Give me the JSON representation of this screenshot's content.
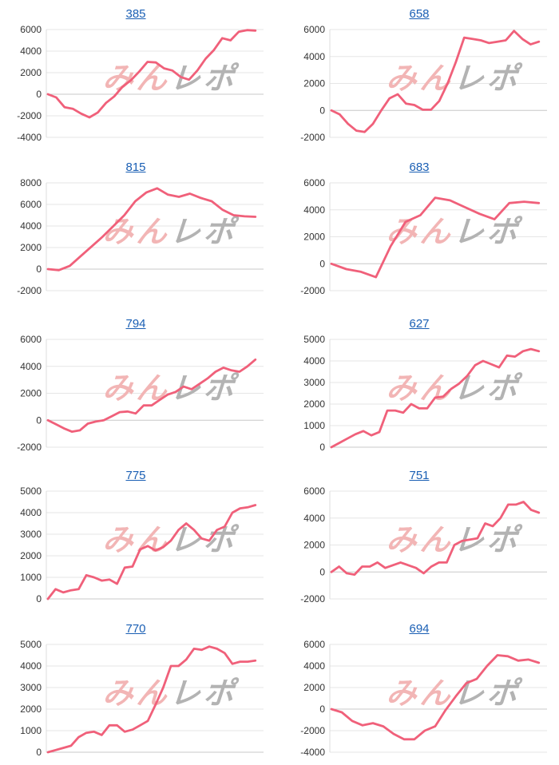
{
  "chart_data": [
    {
      "type": "line",
      "title": "385",
      "ylim": [
        -4000,
        6000
      ],
      "yticks": [
        6000,
        4000,
        2000,
        0,
        -2000,
        -4000
      ],
      "values": [
        0,
        -300,
        -1200,
        -1350,
        -1800,
        -2150,
        -1700,
        -800,
        -200,
        700,
        1300,
        2100,
        3000,
        2950,
        2400,
        2200,
        1600,
        1350,
        2200,
        3300,
        4100,
        5200,
        5000,
        5800,
        5950,
        5900
      ],
      "line_color": "#f0607a",
      "watermark": "みんレポ"
    },
    {
      "type": "line",
      "title": "658",
      "ylim": [
        -2000,
        6000
      ],
      "yticks": [
        6000,
        4000,
        2000,
        0,
        -2000
      ],
      "values": [
        0,
        -300,
        -1000,
        -1500,
        -1600,
        -1000,
        0,
        900,
        1200,
        500,
        400,
        50,
        50,
        700,
        2000,
        3600,
        5400,
        5300,
        5200,
        5000,
        5100,
        5200,
        5900,
        5300,
        4900,
        5100
      ],
      "line_color": "#f0607a",
      "watermark": "みんレポ"
    },
    {
      "type": "line",
      "title": "815",
      "ylim": [
        -2000,
        8000
      ],
      "yticks": [
        8000,
        6000,
        4000,
        2000,
        0,
        -2000
      ],
      "values": [
        0,
        -100,
        300,
        1200,
        2100,
        3000,
        4000,
        5000,
        6300,
        7100,
        7500,
        6900,
        6700,
        7000,
        6600,
        6300,
        5500,
        5000,
        4900,
        4850
      ],
      "line_color": "#f0607a",
      "watermark": "みんレポ"
    },
    {
      "type": "line",
      "title": "683",
      "ylim": [
        -2000,
        6000
      ],
      "yticks": [
        6000,
        4000,
        2000,
        0,
        -2000
      ],
      "values": [
        0,
        -400,
        -600,
        -1000,
        1300,
        3100,
        3600,
        4900,
        4700,
        4200,
        3700,
        3300,
        4500,
        4600,
        4500
      ],
      "line_color": "#f0607a",
      "watermark": "みんレポ"
    },
    {
      "type": "line",
      "title": "794",
      "ylim": [
        -2000,
        6000
      ],
      "yticks": [
        6000,
        4000,
        2000,
        0,
        -2000
      ],
      "values": [
        0,
        -300,
        -600,
        -850,
        -750,
        -250,
        -100,
        0,
        300,
        600,
        650,
        500,
        1100,
        1100,
        1500,
        1900,
        2100,
        2500,
        2300,
        2700,
        3100,
        3600,
        3900,
        3700,
        3600,
        4000,
        4500
      ],
      "line_color": "#f0607a",
      "watermark": "みんレポ"
    },
    {
      "type": "line",
      "title": "627",
      "ylim": [
        0,
        5000
      ],
      "yticks": [
        5000,
        4000,
        3000,
        2000,
        1000,
        0
      ],
      "values": [
        0,
        200,
        400,
        600,
        750,
        550,
        700,
        1700,
        1700,
        1600,
        2000,
        1800,
        1800,
        2300,
        2350,
        2700,
        2950,
        3300,
        3800,
        4000,
        3850,
        3700,
        4250,
        4200,
        4450,
        4550,
        4450
      ],
      "line_color": "#f0607a",
      "watermark": "みんレポ"
    },
    {
      "type": "line",
      "title": "775",
      "ylim": [
        0,
        5000
      ],
      "yticks": [
        5000,
        4000,
        3000,
        2000,
        1000,
        0
      ],
      "values": [
        0,
        450,
        300,
        400,
        450,
        1100,
        1000,
        850,
        900,
        700,
        1450,
        1500,
        2300,
        2450,
        2250,
        2400,
        2700,
        3200,
        3500,
        3200,
        2800,
        2700,
        3200,
        3350,
        4000,
        4200,
        4250,
        4350
      ],
      "line_color": "#f0607a",
      "watermark": "みんレポ"
    },
    {
      "type": "line",
      "title": "751",
      "ylim": [
        -2000,
        6000
      ],
      "yticks": [
        6000,
        4000,
        2000,
        0,
        -2000
      ],
      "values": [
        0,
        400,
        -100,
        -200,
        400,
        400,
        700,
        300,
        500,
        700,
        500,
        300,
        -100,
        400,
        700,
        700,
        2000,
        2300,
        2400,
        2500,
        3600,
        3400,
        4000,
        5000,
        5000,
        5200,
        4600,
        4400
      ],
      "line_color": "#f0607a",
      "watermark": "みんレポ"
    },
    {
      "type": "line",
      "title": "770",
      "ylim": [
        0,
        5000
      ],
      "yticks": [
        5000,
        4000,
        3000,
        2000,
        1000,
        0
      ],
      "values": [
        0,
        100,
        200,
        300,
        700,
        900,
        950,
        800,
        1250,
        1250,
        950,
        1050,
        1250,
        1450,
        2200,
        3000,
        4000,
        4000,
        4300,
        4800,
        4750,
        4900,
        4800,
        4600,
        4100,
        4200,
        4200,
        4250
      ],
      "line_color": "#f0607a",
      "watermark": "みんレポ"
    },
    {
      "type": "line",
      "title": "694",
      "ylim": [
        -4000,
        6000
      ],
      "yticks": [
        6000,
        4000,
        2000,
        0,
        -2000,
        -4000
      ],
      "values": [
        0,
        -300,
        -1100,
        -1500,
        -1300,
        -1600,
        -2300,
        -2800,
        -2800,
        -2000,
        -1600,
        -100,
        1200,
        2400,
        2800,
        4000,
        5000,
        4900,
        4500,
        4600,
        4300
      ],
      "line_color": "#f0607a",
      "watermark": "みんレポ"
    }
  ]
}
